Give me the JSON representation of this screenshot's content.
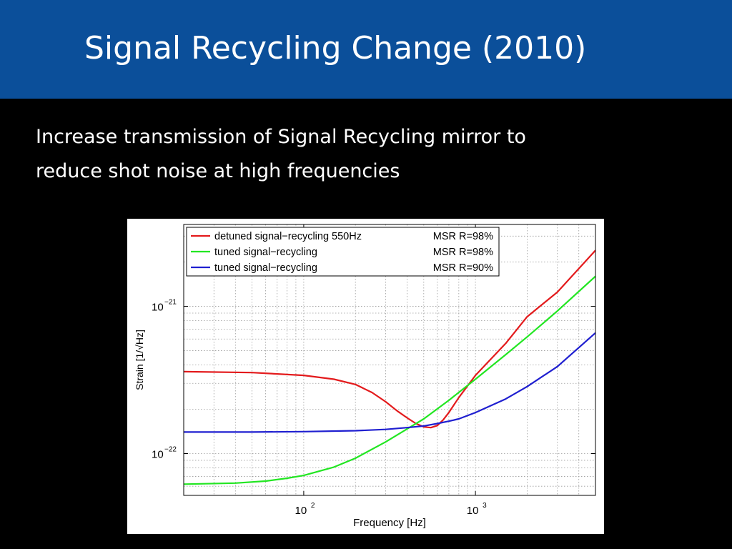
{
  "slide": {
    "title": "Signal Recycling Change (2010)",
    "body_line1": "Increase transmission of Signal Recycling mirror to",
    "body_line2": "reduce shot noise at high frequencies"
  },
  "colors": {
    "title_bar": "#0b4f9a",
    "background": "#000000",
    "red": "#e31a1c",
    "green": "#22e622",
    "blue": "#1f1fd0"
  },
  "chart_data": {
    "type": "line",
    "x_scale": "log",
    "y_scale": "log",
    "xlabel": "Frequency [Hz]",
    "ylabel": "Strain [1/√Hz]",
    "xlim": [
      20,
      5000
    ],
    "ylim": [
      5.2e-23,
      3.6e-21
    ],
    "grid": true,
    "legend_position": "top-left",
    "x_ticks": [
      {
        "value": 100,
        "base": "10",
        "exp": "2"
      },
      {
        "value": 1000,
        "base": "10",
        "exp": "3"
      }
    ],
    "y_ticks": [
      {
        "value": 1e-22,
        "base": "10",
        "exp": "−22"
      },
      {
        "value": 1e-21,
        "base": "10",
        "exp": "−21"
      }
    ],
    "series": [
      {
        "name": "detuned signal−recycling 550Hz",
        "note": "MSR R=98%",
        "color": "#e31a1c",
        "x": [
          20,
          50,
          100,
          150,
          200,
          250,
          300,
          350,
          400,
          450,
          500,
          550,
          600,
          650,
          700,
          800,
          1000,
          1500,
          2000,
          3000,
          5000
        ],
        "y": [
          3.6e-22,
          3.55e-22,
          3.4e-22,
          3.2e-22,
          2.95e-22,
          2.6e-22,
          2.25e-22,
          1.95e-22,
          1.75e-22,
          1.6e-22,
          1.52e-22,
          1.5e-22,
          1.55e-22,
          1.7e-22,
          1.9e-22,
          2.4e-22,
          3.4e-22,
          5.6e-22,
          8.5e-22,
          1.25e-21,
          2.4e-21
        ]
      },
      {
        "name": "tuned signal−recycling",
        "note": "MSR R=98%",
        "color": "#22e622",
        "x": [
          20,
          40,
          60,
          80,
          100,
          150,
          200,
          300,
          400,
          500,
          700,
          1000,
          1500,
          2000,
          3000,
          5000
        ],
        "y": [
          6.2e-23,
          6.3e-23,
          6.5e-23,
          6.8e-23,
          7.1e-23,
          8.1e-23,
          9.3e-23,
          1.2e-22,
          1.47e-22,
          1.72e-22,
          2.3e-22,
          3.2e-22,
          4.7e-22,
          6.2e-22,
          9.3e-22,
          1.6e-21
        ]
      },
      {
        "name": "tuned signal−recycling",
        "note": "MSR R=90%",
        "color": "#1f1fd0",
        "x": [
          20,
          50,
          100,
          200,
          300,
          400,
          500,
          600,
          700,
          800,
          1000,
          1500,
          2000,
          3000,
          5000
        ],
        "y": [
          1.4e-22,
          1.4e-22,
          1.41e-22,
          1.43e-22,
          1.46e-22,
          1.5e-22,
          1.54e-22,
          1.6e-22,
          1.66e-22,
          1.72e-22,
          1.9e-22,
          2.35e-22,
          2.85e-22,
          3.9e-22,
          6.6e-22
        ]
      }
    ]
  }
}
